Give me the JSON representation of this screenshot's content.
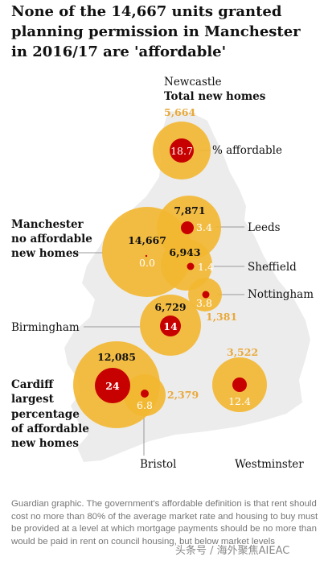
{
  "title": "None of the 14,667 units granted planning permission in Manchester in 2016/17 are 'affordable'",
  "legend": {
    "example_city": "Newcastle",
    "total_label": "Total new homes",
    "pct_label": "% affordable"
  },
  "annotations": {
    "manchester": [
      "Manchester",
      "no affordable",
      "new homes"
    ],
    "cardiff": [
      "Cardiff",
      "largest",
      "percentage",
      "of affordable",
      "new homes"
    ]
  },
  "note": "Guardian graphic. The government's affordable definition is that rent should cost no more than 80% of the average market rate and housing to buy must be provided at a level at which mortgage payments should be no more than would be paid in rent on council housing, but below market levels",
  "watermark": "头条号 / 海外聚焦AIEAC",
  "colors": {
    "total": "#f3b731",
    "affordable": "#c70000",
    "map": "#ececec",
    "leader": "#999999"
  },
  "chart_data": {
    "type": "bubble-map",
    "title": "None of the 14,667 units granted planning permission in Manchester in 2016/17 are 'affordable'",
    "size_encodes": "total new homes",
    "inner_size_encodes": "% affordable",
    "cities": [
      {
        "name": "Newcastle",
        "total_new_homes": 5664,
        "total_label": "5,664",
        "pct_affordable": 18.7,
        "pct_label": "18.7"
      },
      {
        "name": "Manchester",
        "total_new_homes": 14667,
        "total_label": "14,667",
        "pct_affordable": 0.0,
        "pct_label": "0.0"
      },
      {
        "name": "Leeds",
        "total_new_homes": 7871,
        "total_label": "7,871",
        "pct_affordable": 3.4,
        "pct_label": "3.4"
      },
      {
        "name": "Sheffield",
        "total_new_homes": 6943,
        "total_label": "6,943",
        "pct_affordable": 1.4,
        "pct_label": "1.4"
      },
      {
        "name": "Nottingham",
        "total_new_homes": 1381,
        "total_label": "1,381",
        "pct_affordable": 3.8,
        "pct_label": "3.8"
      },
      {
        "name": "Birmingham",
        "total_new_homes": 6729,
        "total_label": "6,729",
        "pct_affordable": 14,
        "pct_label": "14"
      },
      {
        "name": "Cardiff",
        "total_new_homes": 12085,
        "total_label": "12,085",
        "pct_affordable": 24,
        "pct_label": "24"
      },
      {
        "name": "Bristol",
        "total_new_homes": 2379,
        "total_label": "2,379",
        "pct_affordable": 6.8,
        "pct_label": "6.8"
      },
      {
        "name": "Westminster",
        "total_new_homes": 3522,
        "total_label": "3,522",
        "pct_affordable": 12.4,
        "pct_label": "12.4"
      }
    ]
  }
}
